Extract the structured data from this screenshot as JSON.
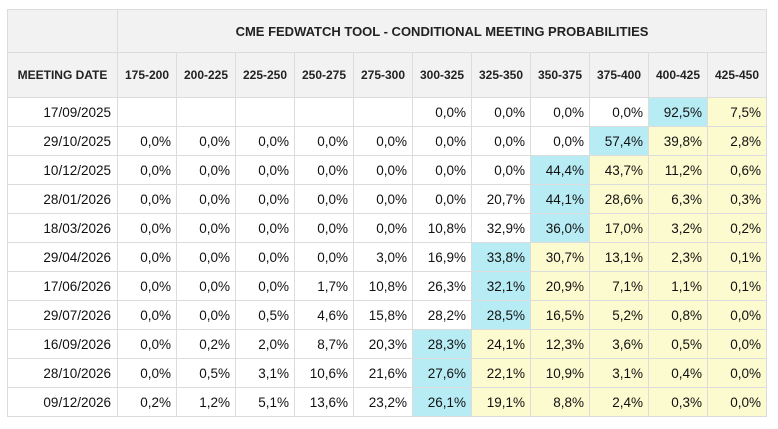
{
  "title": "CME FEDWATCH TOOL - CONDITIONAL MEETING PROBABILITIES",
  "date_header": "MEETING DATE",
  "columns": [
    "175-200",
    "200-225",
    "225-250",
    "250-275",
    "275-300",
    "300-325",
    "325-350",
    "350-375",
    "375-400",
    "400-425",
    "425-450"
  ],
  "colors": {
    "max_highlight": "#b7ecf5",
    "above_highlight": "#fcfbd0",
    "header_bg": "#f2f2f2",
    "border": "#dcdcdc"
  },
  "rows": [
    {
      "date": "17/09/2025",
      "values": [
        "",
        "",
        "",
        "",
        "",
        "0,0%",
        "0,0%",
        "0,0%",
        "0,0%",
        "92,5%",
        "7,5%"
      ],
      "max": 9
    },
    {
      "date": "29/10/2025",
      "values": [
        "0,0%",
        "0,0%",
        "0,0%",
        "0,0%",
        "0,0%",
        "0,0%",
        "0,0%",
        "0,0%",
        "57,4%",
        "39,8%",
        "2,8%"
      ],
      "max": 8
    },
    {
      "date": "10/12/2025",
      "values": [
        "0,0%",
        "0,0%",
        "0,0%",
        "0,0%",
        "0,0%",
        "0,0%",
        "0,0%",
        "44,4%",
        "43,7%",
        "11,2%",
        "0,6%"
      ],
      "max": 7
    },
    {
      "date": "28/01/2026",
      "values": [
        "0,0%",
        "0,0%",
        "0,0%",
        "0,0%",
        "0,0%",
        "0,0%",
        "20,7%",
        "44,1%",
        "28,6%",
        "6,3%",
        "0,3%"
      ],
      "max": 7
    },
    {
      "date": "18/03/2026",
      "values": [
        "0,0%",
        "0,0%",
        "0,0%",
        "0,0%",
        "0,0%",
        "10,8%",
        "32,9%",
        "36,0%",
        "17,0%",
        "3,2%",
        "0,2%"
      ],
      "max": 7
    },
    {
      "date": "29/04/2026",
      "values": [
        "0,0%",
        "0,0%",
        "0,0%",
        "0,0%",
        "3,0%",
        "16,9%",
        "33,8%",
        "30,7%",
        "13,1%",
        "2,3%",
        "0,1%"
      ],
      "max": 6
    },
    {
      "date": "17/06/2026",
      "values": [
        "0,0%",
        "0,0%",
        "0,0%",
        "1,7%",
        "10,8%",
        "26,3%",
        "32,1%",
        "20,9%",
        "7,1%",
        "1,1%",
        "0,1%"
      ],
      "max": 6
    },
    {
      "date": "29/07/2026",
      "values": [
        "0,0%",
        "0,0%",
        "0,5%",
        "4,6%",
        "15,8%",
        "28,2%",
        "28,5%",
        "16,5%",
        "5,2%",
        "0,8%",
        "0,0%"
      ],
      "max": 6
    },
    {
      "date": "16/09/2026",
      "values": [
        "0,0%",
        "0,2%",
        "2,0%",
        "8,7%",
        "20,3%",
        "28,3%",
        "24,1%",
        "12,3%",
        "3,6%",
        "0,5%",
        "0,0%"
      ],
      "max": 5
    },
    {
      "date": "28/10/2026",
      "values": [
        "0,0%",
        "0,5%",
        "3,1%",
        "10,6%",
        "21,6%",
        "27,6%",
        "22,1%",
        "10,9%",
        "3,1%",
        "0,4%",
        "0,0%"
      ],
      "max": 5
    },
    {
      "date": "09/12/2026",
      "values": [
        "0,2%",
        "1,2%",
        "5,1%",
        "13,6%",
        "23,2%",
        "26,1%",
        "19,1%",
        "8,8%",
        "2,4%",
        "0,3%",
        "0,0%"
      ],
      "max": 5
    }
  ]
}
